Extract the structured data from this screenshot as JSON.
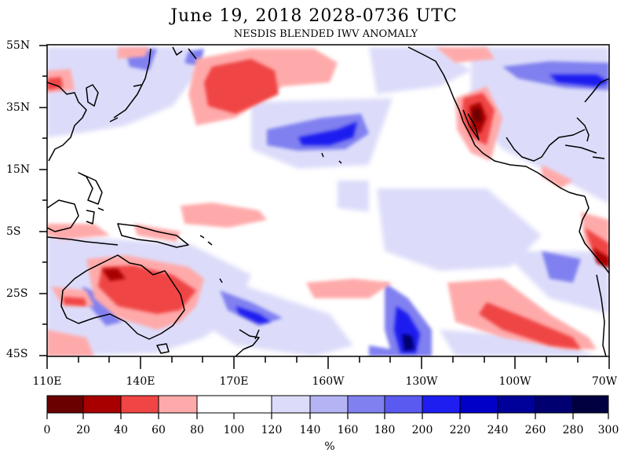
{
  "header": {
    "title": "June 19, 2018  2028-0736 UTC",
    "subtitle": "NESDIS BLENDED IWV ANOMALY"
  },
  "map": {
    "lat_labels": [
      "55N",
      "35N",
      "15N",
      "5S",
      "25S",
      "45S"
    ],
    "lon_labels": [
      "110E",
      "140E",
      "170E",
      "160W",
      "130W",
      "100W",
      "70W"
    ]
  },
  "colorbar": {
    "ticks": [
      "0",
      "20",
      "40",
      "60",
      "80",
      "100",
      "120",
      "140",
      "160",
      "180",
      "200",
      "220",
      "240",
      "260",
      "280",
      "300"
    ],
    "colors": [
      "#6b0000",
      "#a80000",
      "#f04545",
      "#ffaaaa",
      "#ffffff",
      "#dcdcfa",
      "#b4b4f5",
      "#8080f0",
      "#5a5af0",
      "#1e1ef0",
      "#0000c8",
      "#00009a",
      "#000070",
      "#000040"
    ],
    "unit": "%"
  }
}
